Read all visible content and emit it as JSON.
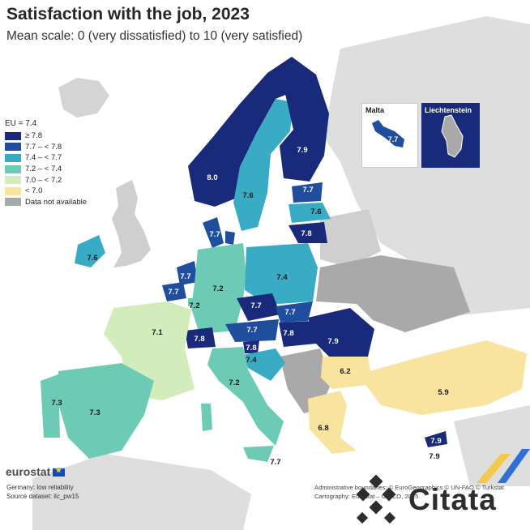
{
  "title": "Satisfaction with the job, 2023",
  "subtitle": "Mean scale: 0 (very dissatisfied) to 10 (very satisfied)",
  "legend": {
    "title": "EU = 7.4",
    "classes": [
      {
        "label": "≥ 7.8",
        "color": "#1a2a7a"
      },
      {
        "label": "7.7 – < 7.8",
        "color": "#1f4e9e"
      },
      {
        "label": "7.4 – < 7.7",
        "color": "#3aabc4"
      },
      {
        "label": "7.2 – < 7.4",
        "color": "#6ccab5"
      },
      {
        "label": "7.0 – < 7.2",
        "color": "#d2ecbc"
      },
      {
        "label": "< 7.0",
        "color": "#f8e49f"
      },
      {
        "label": "Data not available",
        "color": "#a9a9a9"
      }
    ]
  },
  "insets": {
    "malta": {
      "label": "Malta",
      "value": "7.7"
    },
    "liechtenstein": {
      "label": "Liechtenstein"
    }
  },
  "map_values": {
    "norway": "8.0",
    "sweden": "7.6",
    "finland": "7.9",
    "estonia": "7.7",
    "latvia": "7.6",
    "lithuania": "7.8",
    "denmark": "7.7",
    "ireland": "7.6",
    "netherlands": "7.7",
    "belgium": "7.7",
    "luxembourg": "7.2",
    "germany": "7.2",
    "poland": "7.4",
    "czechia": "7.7",
    "slovakia": "7.7",
    "austria": "7.7",
    "hungary": "7.8",
    "romania": "7.9",
    "switzerland": "7.8",
    "slovenia": "7.8",
    "croatia": "7.4",
    "france": "7.1",
    "italy": "7.2",
    "spain": "7.3",
    "portugal": "7.3",
    "bulgaria": "6.2",
    "greece": "6.8",
    "turkiye": "5.9",
    "cyprus": "7.9",
    "malta_main": "7.7"
  },
  "footer": {
    "brand": "eurostat",
    "note": "Germany: low reliability",
    "source": "Source dataset: ilc_pw15",
    "credit1": "Administrative boundaries: © EuroGeographics © UN-FAO © Turkstat",
    "credit2": "Cartography: Eurostat – GISCO, 2025"
  },
  "watermark": "Citata"
}
